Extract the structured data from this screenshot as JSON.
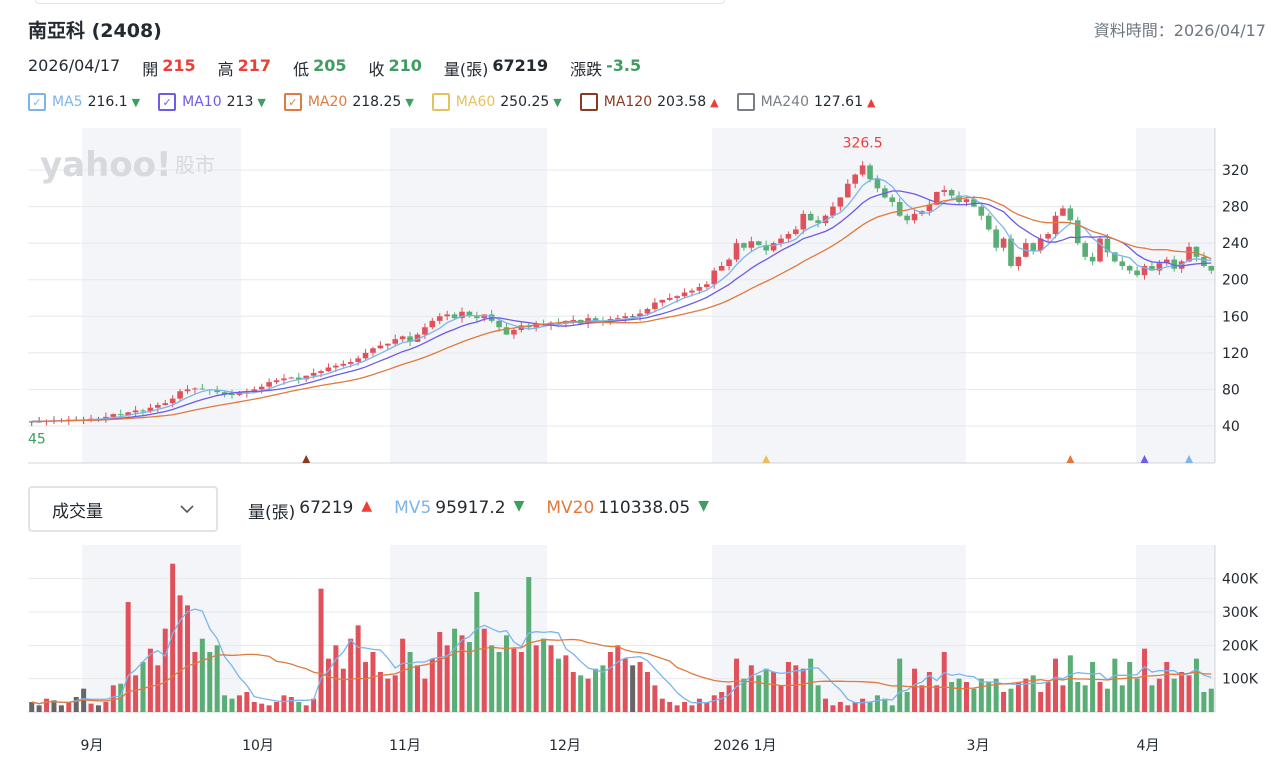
{
  "header": {
    "title": "南亞科 (2408)",
    "data_time": "資料時間：2026/04/17"
  },
  "quote": {
    "date": "2026/04/17",
    "open_label": "開",
    "open": "215",
    "high_label": "高",
    "high": "217",
    "low_label": "低",
    "low": "205",
    "close_label": "收",
    "close": "210",
    "volume_label": "量(張)",
    "volume": "67219",
    "change_label": "漲跌",
    "change": "-3.5"
  },
  "ma_legend": [
    {
      "name": "MA5",
      "value": "216.1",
      "trend": "down",
      "checked": true,
      "color": "#7cb5ec"
    },
    {
      "name": "MA10",
      "value": "213",
      "trend": "down",
      "checked": true,
      "color": "#6c5ce7"
    },
    {
      "name": "MA20",
      "value": "218.25",
      "trend": "down",
      "checked": true,
      "color": "#e07a3f"
    },
    {
      "name": "MA60",
      "value": "250.25",
      "trend": "down",
      "checked": false,
      "color": "#e8c15f"
    },
    {
      "name": "MA120",
      "value": "203.58",
      "trend": "up",
      "checked": false,
      "color": "#8b3a22"
    },
    {
      "name": "MA240",
      "value": "127.61",
      "trend": "up",
      "checked": false,
      "color": "#7a7f87"
    }
  ],
  "icons": {
    "checked": "✓",
    "up": "▲",
    "down": "▼",
    "chevron": "chevron-down-icon"
  },
  "watermark": {
    "brand": "yahoo!",
    "section": "股市"
  },
  "colors": {
    "up": "#e0525b",
    "down": "#5aae75",
    "flat": "#666666"
  },
  "volume_panel": {
    "selector": "成交量",
    "vol_label": "量(張)",
    "vol": "67219",
    "vol_trend": "up",
    "mv5_label": "MV5",
    "mv5": "95917.2",
    "mv5_trend": "down",
    "mv20_label": "MV20",
    "mv20": "110338.05",
    "mv20_trend": "down"
  },
  "chart_data": {
    "type": "candlestick",
    "price_axis": {
      "ticks": [
        40,
        80,
        120,
        160,
        200,
        240,
        280,
        320
      ]
    },
    "volume_axis": {
      "ticks": [
        "100K",
        "200K",
        "300K",
        "400K"
      ],
      "values": [
        100,
        200,
        300,
        400
      ]
    },
    "x_labels": [
      "9月",
      "10月",
      "11月",
      "12月",
      "2026 1月",
      "3月",
      "4月"
    ],
    "max_label": "326.5",
    "min_label": "45",
    "closes": [
      45,
      45,
      46,
      46,
      46,
      47,
      47,
      47,
      48,
      48,
      50,
      53,
      52,
      55,
      57,
      56,
      60,
      63,
      65,
      70,
      78,
      80,
      81,
      80,
      79,
      77,
      75,
      74,
      76,
      77,
      80,
      83,
      88,
      90,
      92,
      93,
      91,
      95,
      98,
      100,
      104,
      106,
      108,
      110,
      114,
      120,
      125,
      128,
      130,
      135,
      138,
      132,
      140,
      148,
      155,
      160,
      162,
      158,
      165,
      160,
      158,
      162,
      155,
      148,
      140,
      145,
      150,
      148,
      152,
      150,
      153,
      152,
      155,
      156,
      152,
      158,
      155,
      154,
      157,
      158,
      160,
      160,
      163,
      168,
      175,
      178,
      180,
      182,
      186,
      188,
      192,
      195,
      210,
      215,
      222,
      240,
      235,
      242,
      238,
      232,
      240,
      245,
      250,
      255,
      272,
      265,
      262,
      270,
      280,
      290,
      305,
      315,
      325,
      310,
      300,
      290,
      285,
      270,
      265,
      272,
      275,
      282,
      296,
      298,
      292,
      285,
      288,
      280,
      270,
      255,
      235,
      245,
      215,
      225,
      240,
      232,
      245,
      250,
      270,
      278,
      265,
      240,
      225,
      220,
      245,
      230,
      220,
      215,
      210,
      205,
      215,
      210,
      218,
      222,
      212,
      220,
      236,
      225,
      215,
      210
    ],
    "volumes_k": [
      30,
      20,
      40,
      35,
      20,
      30,
      45,
      70,
      25,
      20,
      30,
      80,
      85,
      330,
      110,
      150,
      190,
      140,
      250,
      445,
      350,
      320,
      180,
      220,
      180,
      200,
      50,
      40,
      50,
      60,
      30,
      25,
      20,
      30,
      50,
      45,
      30,
      20,
      40,
      370,
      160,
      200,
      130,
      220,
      260,
      150,
      180,
      120,
      100,
      110,
      220,
      180,
      140,
      100,
      160,
      240,
      200,
      250,
      230,
      210,
      360,
      250,
      200,
      180,
      230,
      190,
      180,
      405,
      200,
      220,
      200,
      160,
      170,
      120,
      110,
      100,
      130,
      140,
      180,
      200,
      160,
      140,
      150,
      120,
      80,
      40,
      30,
      20,
      30,
      20,
      40,
      30,
      50,
      60,
      80,
      160,
      100,
      140,
      110,
      130,
      120,
      80,
      150,
      140,
      130,
      160,
      80,
      40,
      20,
      30,
      20,
      30,
      40,
      30,
      50,
      40,
      20,
      160,
      60,
      130,
      80,
      120,
      80,
      180,
      90,
      100,
      90,
      70,
      100,
      90,
      100,
      60,
      70,
      90,
      100,
      110,
      60,
      90,
      160,
      80,
      170,
      90,
      80,
      150,
      90,
      70,
      160,
      80,
      150,
      100,
      190,
      80,
      100,
      150,
      100,
      120,
      110,
      160,
      60,
      70
    ],
    "signal_markers": [
      {
        "color": "#8b3a22",
        "at_index": 37
      },
      {
        "color": "#e8c15f",
        "at_index": 99
      },
      {
        "color": "#e07a3f",
        "at_index": 140
      },
      {
        "color": "#6c5ce7",
        "at_index": 150
      },
      {
        "color": "#7cb5ec",
        "at_index": 156
      }
    ]
  }
}
